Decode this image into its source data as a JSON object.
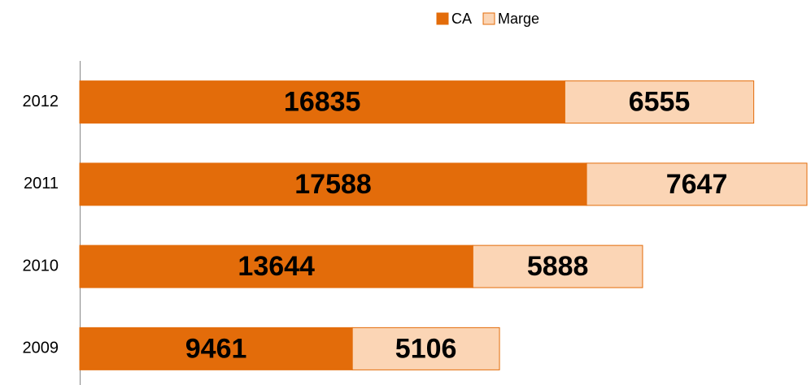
{
  "chart_data": {
    "type": "stacked-barh",
    "categories": [
      "2012",
      "2011",
      "2010",
      "2009"
    ],
    "series": [
      {
        "name": "CA",
        "color": "#e36c0a",
        "values": [
          16835,
          17588,
          13644,
          9461
        ]
      },
      {
        "name": "Marge",
        "color": "#fbd5b5",
        "values": [
          6555,
          7647,
          5888,
          5106
        ]
      }
    ],
    "legend": "top"
  }
}
